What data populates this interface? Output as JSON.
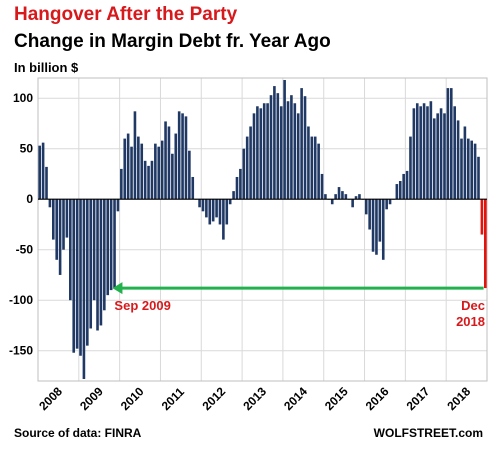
{
  "header": {
    "title": "Hangover After the Party",
    "subtitle": "Change in Margin Debt fr. Year Ago",
    "unit": "In billion $"
  },
  "footer": {
    "source": "Source of data: FINRA",
    "brand": "WOLFSTREET.com"
  },
  "colors": {
    "bar": "#1f3864",
    "highlight": "#e3120b",
    "arrow": "#22b14c",
    "accent_text": "#d7191c"
  },
  "annotations": {
    "left_label": "Sep 2009",
    "right_label_1": "Dec",
    "right_label_2": "2018"
  },
  "chart_data": {
    "type": "bar",
    "title": "Change in Margin Debt fr. Year Ago",
    "ylabel": "In billion $",
    "ylim": [
      -180,
      120
    ],
    "yticks": [
      100,
      50,
      0,
      -50,
      -100,
      -150
    ],
    "xticks": [
      "2008",
      "2009",
      "2010",
      "2011",
      "2012",
      "2013",
      "2014",
      "2015",
      "2016",
      "2017",
      "2018"
    ],
    "x_start": "2008-01",
    "x_end": "2018-12",
    "values": [
      53,
      56,
      32,
      -8,
      -40,
      -60,
      -75,
      -50,
      -38,
      -100,
      -152,
      -148,
      -155,
      -178,
      -145,
      -128,
      -100,
      -130,
      -125,
      -110,
      -95,
      -90,
      -88,
      -12,
      30,
      60,
      65,
      52,
      87,
      62,
      55,
      38,
      33,
      38,
      55,
      52,
      58,
      77,
      72,
      45,
      65,
      87,
      85,
      82,
      48,
      22,
      0,
      -8,
      -12,
      -18,
      -25,
      -22,
      -18,
      -25,
      -40,
      -25,
      -5,
      8,
      22,
      30,
      50,
      62,
      72,
      85,
      92,
      90,
      95,
      95,
      103,
      112,
      105,
      92,
      118,
      97,
      103,
      95,
      85,
      110,
      102,
      72,
      62,
      62,
      55,
      25,
      5,
      0,
      -5,
      5,
      12,
      8,
      5,
      0,
      -8,
      3,
      5,
      0,
      -15,
      -30,
      -52,
      -55,
      -42,
      -60,
      -10,
      -5,
      0,
      15,
      18,
      25,
      28,
      62,
      90,
      95,
      92,
      95,
      92,
      97,
      80,
      85,
      90,
      85,
      110,
      110,
      92,
      78,
      60,
      72,
      60,
      58,
      55,
      42,
      -35,
      -88
    ]
  }
}
